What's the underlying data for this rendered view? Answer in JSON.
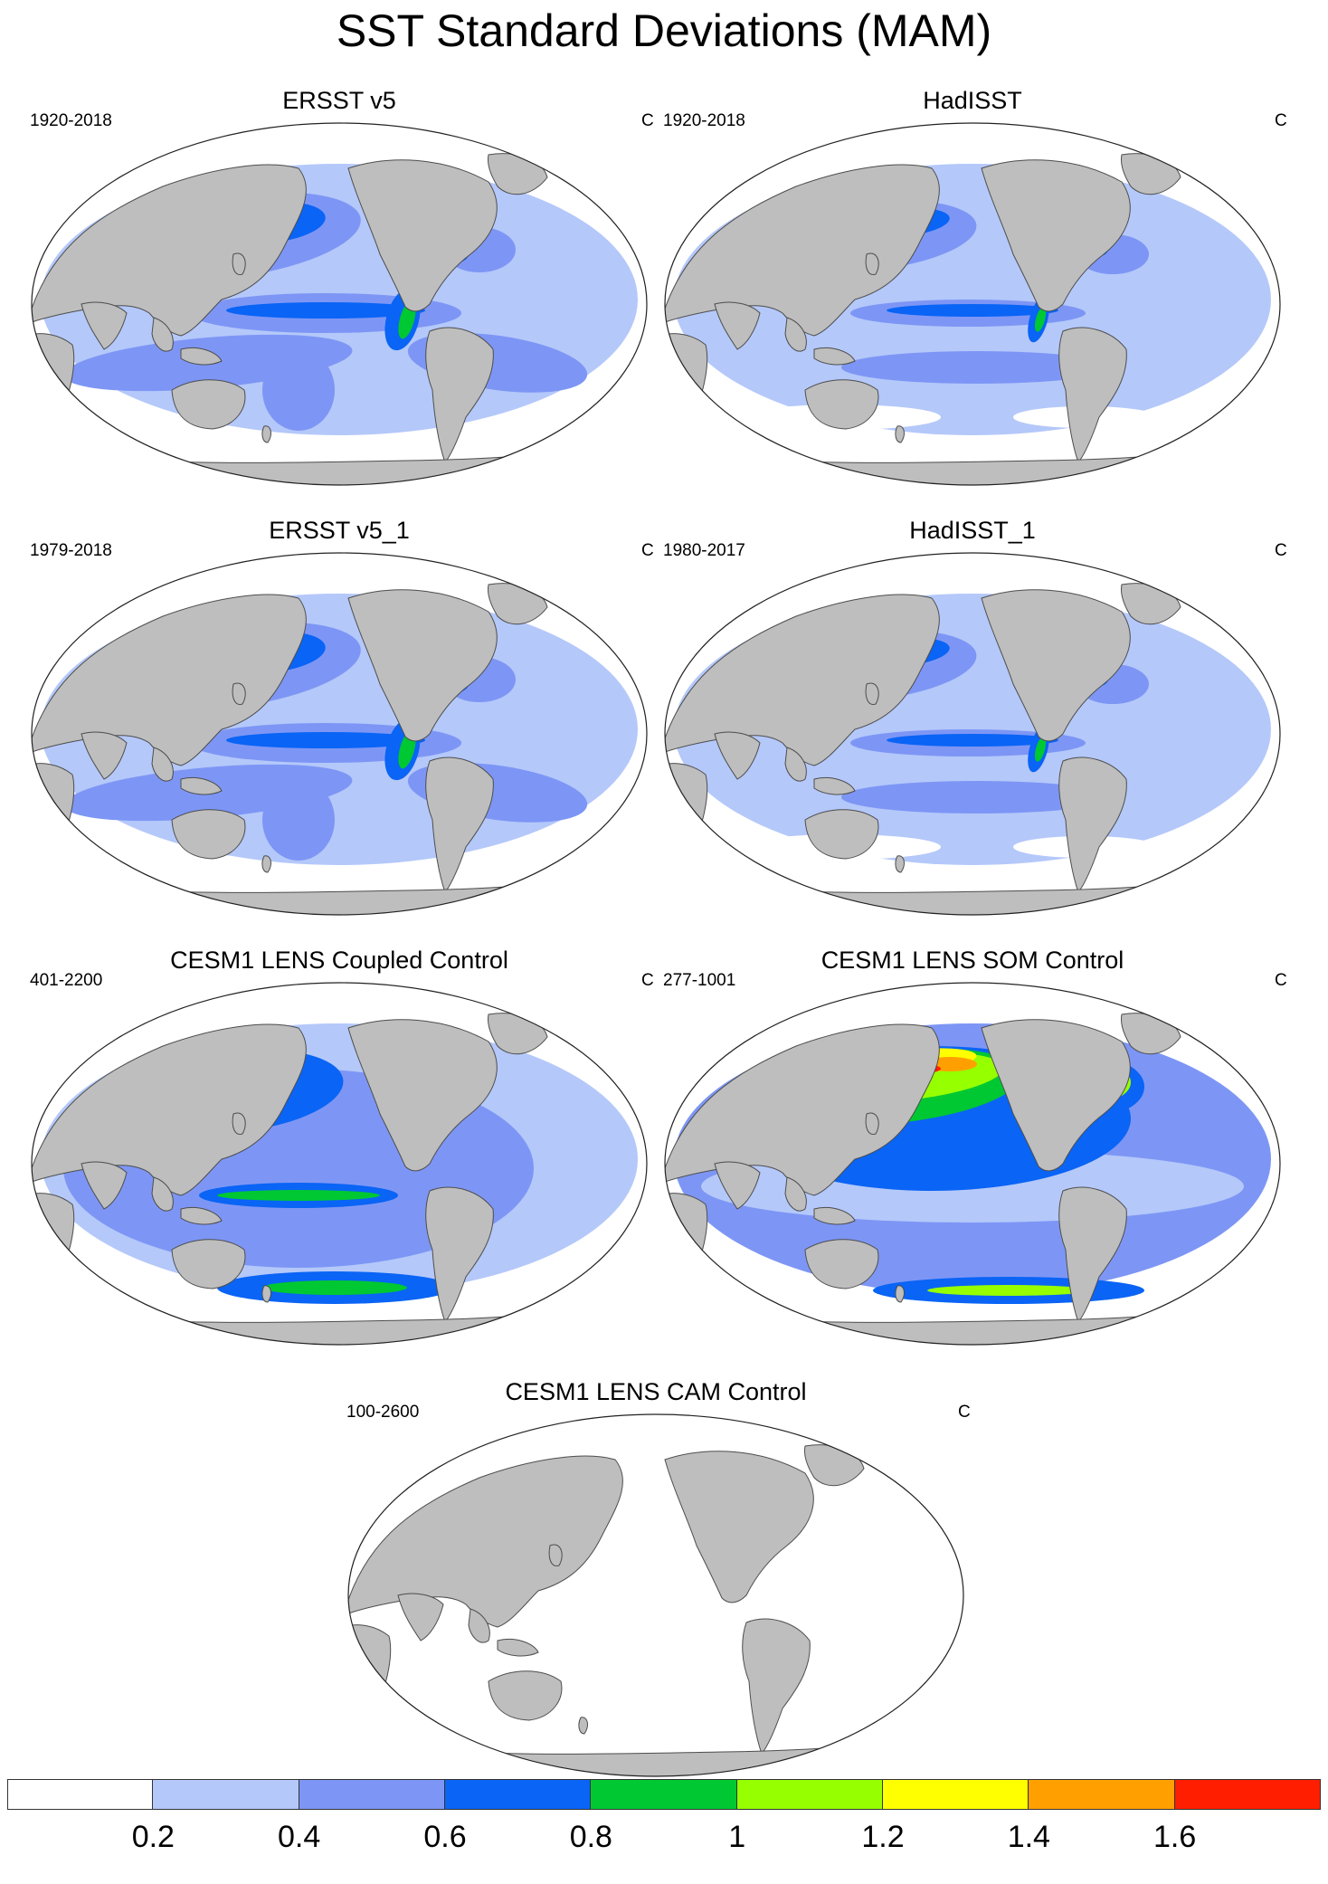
{
  "title": "SST Standard Deviations (MAM)",
  "panels": [
    {
      "title": "ERSST v5",
      "years": "1920-2018",
      "units": "C",
      "pattern": "obs"
    },
    {
      "title": "HadISST",
      "years": "1920-2018",
      "units": "C",
      "pattern": "obs2"
    },
    {
      "title": "ERSST v5_1",
      "years": "1979-2018",
      "units": "C",
      "pattern": "obs"
    },
    {
      "title": "HadISST_1",
      "years": "1980-2017",
      "units": "C",
      "pattern": "obs2"
    },
    {
      "title": "CESM1 LENS Coupled Control",
      "years": "401-2200",
      "units": "C",
      "pattern": "coupled"
    },
    {
      "title": "CESM1 LENS SOM Control",
      "years": "277-1001",
      "units": "C",
      "pattern": "som"
    },
    {
      "title": "CESM1 LENS CAM Control",
      "years": "100-2600",
      "units": "C",
      "pattern": "cam"
    }
  ],
  "colorbar": {
    "colors": [
      "#ffffff",
      "#b4c8fa",
      "#7d96f5",
      "#0a64f5",
      "#00c832",
      "#96ff00",
      "#ffff00",
      "#ffa000",
      "#ff1e00"
    ],
    "labels": [
      "0.2",
      "0.4",
      "0.6",
      "0.8",
      "1",
      "1.2",
      "1.4",
      "1.6"
    ]
  },
  "colors": {
    "land": "#bebebe",
    "coast": "#4d4d4d"
  }
}
